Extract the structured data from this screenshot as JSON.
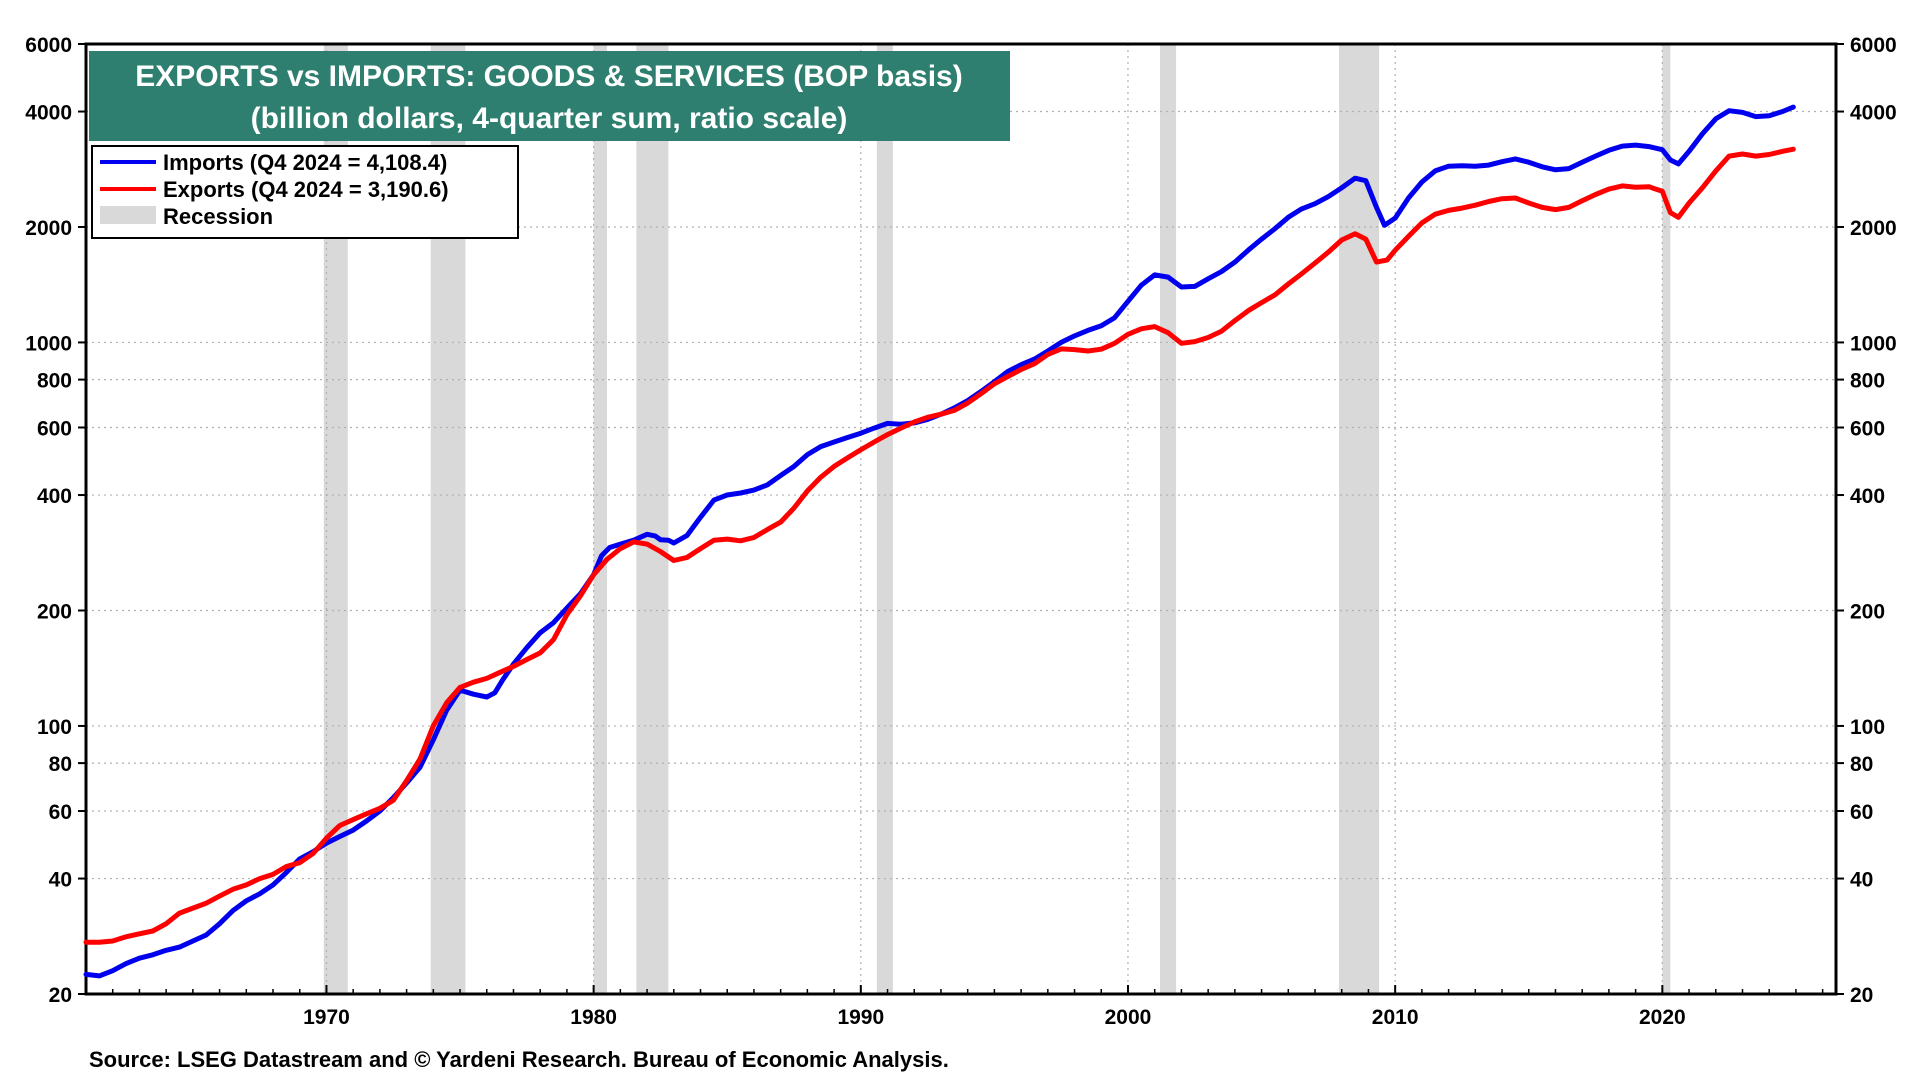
{
  "chart_data": {
    "type": "line",
    "title": "EXPORTS vs IMPORTS: GOODS & SERVICES (BOP basis)",
    "subtitle": "(billion dollars, 4-quarter sum, ratio scale)",
    "source": "Source: LSEG Datastream and © Yardeni Research. Bureau of Economic Analysis.",
    "yscale": "log",
    "ylim": [
      20,
      6000
    ],
    "xlim": [
      1961.0,
      2026.5
    ],
    "yticks": [
      20,
      40,
      60,
      80,
      100,
      200,
      400,
      600,
      800,
      1000,
      2000,
      4000,
      6000
    ],
    "ytick_labels": [
      "20",
      "40",
      "60",
      "80",
      "100",
      "200",
      "400",
      "600",
      "800",
      "1000",
      "2000",
      "4000",
      "6000"
    ],
    "xticks": [
      1970,
      1980,
      1990,
      2000,
      2010,
      2020
    ],
    "xtick_labels": [
      "1970",
      "1980",
      "1990",
      "2000",
      "2010",
      "2020"
    ],
    "legend": {
      "position": "top-left",
      "entries": [
        {
          "label": "Imports (Q4 2024 = 4,108.4)",
          "color": "#0000ee"
        },
        {
          "label": "Exports (Q4 2024 = 3,190.6)",
          "color": "#ff0000"
        },
        {
          "label": "Recession",
          "color": "#d9d9d9"
        }
      ]
    },
    "recessions": [
      [
        1969.9,
        1970.8
      ],
      [
        1973.9,
        1975.2
      ],
      [
        1980.0,
        1980.5
      ],
      [
        1981.6,
        1982.8
      ],
      [
        1990.6,
        1991.2
      ],
      [
        2001.2,
        2001.8
      ],
      [
        2007.9,
        2009.4
      ],
      [
        2020.0,
        2020.3
      ]
    ],
    "series": [
      {
        "name": "Imports",
        "color": "#0000ee",
        "points": [
          [
            1961.0,
            22.5
          ],
          [
            1961.5,
            22.3
          ],
          [
            1962.0,
            23
          ],
          [
            1962.5,
            24
          ],
          [
            1963.0,
            24.8
          ],
          [
            1963.5,
            25.3
          ],
          [
            1964.0,
            26
          ],
          [
            1964.5,
            26.5
          ],
          [
            1965.0,
            27.5
          ],
          [
            1965.5,
            28.5
          ],
          [
            1966.0,
            30.5
          ],
          [
            1966.5,
            33
          ],
          [
            1967.0,
            35
          ],
          [
            1967.5,
            36.5
          ],
          [
            1968.0,
            38.5
          ],
          [
            1968.5,
            41.5
          ],
          [
            1969.0,
            45
          ],
          [
            1969.5,
            47
          ],
          [
            1970.0,
            49.5
          ],
          [
            1970.5,
            51.5
          ],
          [
            1971.0,
            53.5
          ],
          [
            1971.5,
            56.5
          ],
          [
            1972.0,
            60
          ],
          [
            1972.5,
            65
          ],
          [
            1973.0,
            71
          ],
          [
            1973.5,
            78
          ],
          [
            1974.0,
            92
          ],
          [
            1974.5,
            110
          ],
          [
            1975.0,
            124
          ],
          [
            1975.5,
            121
          ],
          [
            1976.0,
            119
          ],
          [
            1976.3,
            122
          ],
          [
            1976.6,
            132
          ],
          [
            1977.0,
            145
          ],
          [
            1977.5,
            160
          ],
          [
            1978.0,
            175
          ],
          [
            1978.5,
            186
          ],
          [
            1979.0,
            203
          ],
          [
            1979.5,
            221
          ],
          [
            1980.0,
            248
          ],
          [
            1980.3,
            278
          ],
          [
            1980.6,
            292
          ],
          [
            1981.0,
            298
          ],
          [
            1981.5,
            305
          ],
          [
            1982.0,
            316
          ],
          [
            1982.3,
            313
          ],
          [
            1982.5,
            306
          ],
          [
            1982.8,
            305
          ],
          [
            1983.0,
            300
          ],
          [
            1983.5,
            314
          ],
          [
            1984.0,
            350
          ],
          [
            1984.5,
            388
          ],
          [
            1985.0,
            400
          ],
          [
            1985.5,
            405
          ],
          [
            1986.0,
            412
          ],
          [
            1986.5,
            425
          ],
          [
            1987.0,
            450
          ],
          [
            1987.5,
            475
          ],
          [
            1988.0,
            510
          ],
          [
            1988.5,
            535
          ],
          [
            1989.0,
            550
          ],
          [
            1989.5,
            565
          ],
          [
            1990.0,
            580
          ],
          [
            1990.5,
            598
          ],
          [
            1991.0,
            615
          ],
          [
            1991.5,
            612
          ],
          [
            1992.0,
            617
          ],
          [
            1992.5,
            630
          ],
          [
            1993.0,
            650
          ],
          [
            1993.5,
            675
          ],
          [
            1994.0,
            705
          ],
          [
            1994.5,
            745
          ],
          [
            1995.0,
            790
          ],
          [
            1995.5,
            840
          ],
          [
            1996.0,
            875
          ],
          [
            1996.5,
            905
          ],
          [
            1997.0,
            950
          ],
          [
            1997.5,
            1000
          ],
          [
            1998.0,
            1040
          ],
          [
            1998.5,
            1075
          ],
          [
            1999.0,
            1105
          ],
          [
            1999.5,
            1160
          ],
          [
            2000.0,
            1280
          ],
          [
            2000.5,
            1410
          ],
          [
            2001.0,
            1500
          ],
          [
            2001.5,
            1480
          ],
          [
            2002.0,
            1395
          ],
          [
            2002.5,
            1400
          ],
          [
            2003.0,
            1465
          ],
          [
            2003.5,
            1530
          ],
          [
            2004.0,
            1620
          ],
          [
            2004.5,
            1740
          ],
          [
            2005.0,
            1860
          ],
          [
            2005.5,
            1980
          ],
          [
            2006.0,
            2120
          ],
          [
            2006.5,
            2230
          ],
          [
            2007.0,
            2300
          ],
          [
            2007.5,
            2400
          ],
          [
            2008.0,
            2530
          ],
          [
            2008.5,
            2680
          ],
          [
            2008.9,
            2640
          ],
          [
            2009.3,
            2250
          ],
          [
            2009.6,
            2020
          ],
          [
            2010.0,
            2110
          ],
          [
            2010.5,
            2380
          ],
          [
            2011.0,
            2620
          ],
          [
            2011.5,
            2800
          ],
          [
            2012.0,
            2880
          ],
          [
            2012.5,
            2890
          ],
          [
            2013.0,
            2880
          ],
          [
            2013.5,
            2900
          ],
          [
            2014.0,
            2960
          ],
          [
            2014.5,
            3010
          ],
          [
            2015.0,
            2950
          ],
          [
            2015.5,
            2870
          ],
          [
            2016.0,
            2820
          ],
          [
            2016.5,
            2840
          ],
          [
            2017.0,
            2950
          ],
          [
            2017.5,
            3060
          ],
          [
            2018.0,
            3170
          ],
          [
            2018.5,
            3250
          ],
          [
            2019.0,
            3270
          ],
          [
            2019.5,
            3240
          ],
          [
            2020.0,
            3180
          ],
          [
            2020.3,
            2990
          ],
          [
            2020.6,
            2920
          ],
          [
            2021.0,
            3150
          ],
          [
            2021.5,
            3500
          ],
          [
            2022.0,
            3830
          ],
          [
            2022.5,
            4020
          ],
          [
            2023.0,
            3980
          ],
          [
            2023.5,
            3880
          ],
          [
            2024.0,
            3900
          ],
          [
            2024.5,
            4000
          ],
          [
            2024.9,
            4108.4
          ]
        ]
      },
      {
        "name": "Exports",
        "color": "#ff0000",
        "points": [
          [
            1961.0,
            27.3
          ],
          [
            1961.5,
            27.3
          ],
          [
            1962.0,
            27.5
          ],
          [
            1962.5,
            28.2
          ],
          [
            1963.0,
            28.7
          ],
          [
            1963.5,
            29.2
          ],
          [
            1964.0,
            30.5
          ],
          [
            1964.5,
            32.5
          ],
          [
            1965.0,
            33.5
          ],
          [
            1965.5,
            34.5
          ],
          [
            1966.0,
            36
          ],
          [
            1966.5,
            37.5
          ],
          [
            1967.0,
            38.5
          ],
          [
            1967.5,
            40
          ],
          [
            1968.0,
            41
          ],
          [
            1968.5,
            43
          ],
          [
            1969.0,
            44
          ],
          [
            1969.5,
            46.5
          ],
          [
            1970.0,
            51
          ],
          [
            1970.5,
            55
          ],
          [
            1971.0,
            57
          ],
          [
            1971.5,
            59
          ],
          [
            1972.0,
            61
          ],
          [
            1972.5,
            64
          ],
          [
            1973.0,
            72
          ],
          [
            1973.5,
            82
          ],
          [
            1974.0,
            100
          ],
          [
            1974.5,
            115
          ],
          [
            1975.0,
            126
          ],
          [
            1975.5,
            130
          ],
          [
            1976.0,
            133
          ],
          [
            1976.5,
            138
          ],
          [
            1977.0,
            143
          ],
          [
            1977.5,
            149
          ],
          [
            1978.0,
            155
          ],
          [
            1978.5,
            168
          ],
          [
            1979.0,
            195
          ],
          [
            1979.5,
            218
          ],
          [
            1980.0,
            248
          ],
          [
            1980.5,
            272
          ],
          [
            1981.0,
            290
          ],
          [
            1981.5,
            302
          ],
          [
            1982.0,
            298
          ],
          [
            1982.5,
            285
          ],
          [
            1983.0,
            270
          ],
          [
            1983.5,
            275
          ],
          [
            1984.0,
            290
          ],
          [
            1984.5,
            305
          ],
          [
            1985.0,
            307
          ],
          [
            1985.5,
            304
          ],
          [
            1986.0,
            310
          ],
          [
            1986.5,
            325
          ],
          [
            1987.0,
            340
          ],
          [
            1987.5,
            370
          ],
          [
            1988.0,
            410
          ],
          [
            1988.5,
            445
          ],
          [
            1989.0,
            475
          ],
          [
            1989.5,
            500
          ],
          [
            1990.0,
            525
          ],
          [
            1990.5,
            550
          ],
          [
            1991.0,
            575
          ],
          [
            1991.5,
            598
          ],
          [
            1992.0,
            620
          ],
          [
            1992.5,
            638
          ],
          [
            1993.0,
            650
          ],
          [
            1993.5,
            665
          ],
          [
            1994.0,
            695
          ],
          [
            1994.5,
            735
          ],
          [
            1995.0,
            780
          ],
          [
            1995.5,
            815
          ],
          [
            1996.0,
            850
          ],
          [
            1996.5,
            880
          ],
          [
            1997.0,
            930
          ],
          [
            1997.5,
            962
          ],
          [
            1998.0,
            958
          ],
          [
            1998.5,
            950
          ],
          [
            1999.0,
            960
          ],
          [
            1999.5,
            995
          ],
          [
            2000.0,
            1050
          ],
          [
            2000.5,
            1085
          ],
          [
            2001.0,
            1100
          ],
          [
            2001.5,
            1060
          ],
          [
            2002.0,
            995
          ],
          [
            2002.5,
            1005
          ],
          [
            2003.0,
            1030
          ],
          [
            2003.5,
            1070
          ],
          [
            2004.0,
            1140
          ],
          [
            2004.5,
            1210
          ],
          [
            2005.0,
            1270
          ],
          [
            2005.5,
            1330
          ],
          [
            2006.0,
            1420
          ],
          [
            2006.5,
            1510
          ],
          [
            2007.0,
            1610
          ],
          [
            2007.5,
            1720
          ],
          [
            2008.0,
            1850
          ],
          [
            2008.5,
            1920
          ],
          [
            2008.9,
            1860
          ],
          [
            2009.3,
            1620
          ],
          [
            2009.7,
            1640
          ],
          [
            2010.0,
            1740
          ],
          [
            2010.5,
            1890
          ],
          [
            2011.0,
            2050
          ],
          [
            2011.5,
            2160
          ],
          [
            2012.0,
            2210
          ],
          [
            2012.5,
            2240
          ],
          [
            2013.0,
            2280
          ],
          [
            2013.5,
            2330
          ],
          [
            2014.0,
            2370
          ],
          [
            2014.5,
            2380
          ],
          [
            2015.0,
            2310
          ],
          [
            2015.5,
            2250
          ],
          [
            2016.0,
            2220
          ],
          [
            2016.5,
            2250
          ],
          [
            2017.0,
            2340
          ],
          [
            2017.5,
            2430
          ],
          [
            2018.0,
            2510
          ],
          [
            2018.5,
            2560
          ],
          [
            2019.0,
            2540
          ],
          [
            2019.5,
            2545
          ],
          [
            2020.0,
            2480
          ],
          [
            2020.3,
            2180
          ],
          [
            2020.6,
            2120
          ],
          [
            2021.0,
            2310
          ],
          [
            2021.5,
            2530
          ],
          [
            2022.0,
            2800
          ],
          [
            2022.5,
            3060
          ],
          [
            2023.0,
            3100
          ],
          [
            2023.5,
            3060
          ],
          [
            2024.0,
            3090
          ],
          [
            2024.5,
            3150
          ],
          [
            2024.9,
            3190.6
          ]
        ]
      }
    ]
  }
}
